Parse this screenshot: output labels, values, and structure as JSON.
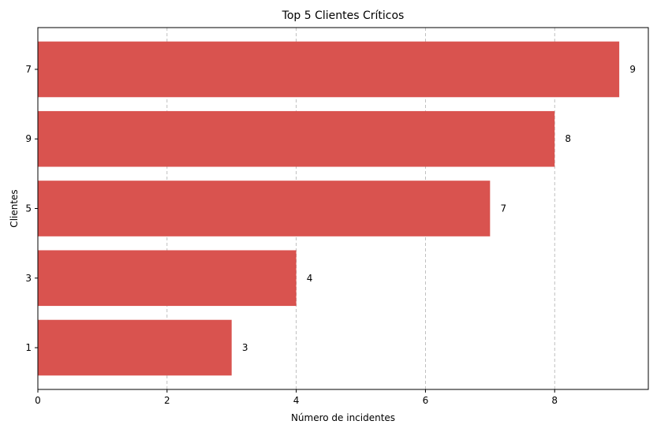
{
  "chart_data": {
    "type": "bar",
    "orientation": "horizontal",
    "title": "Top 5 Clientes Críticos",
    "xlabel": "Número de incidentes",
    "ylabel": "Clientes",
    "categories": [
      "7",
      "9",
      "5",
      "3",
      "1"
    ],
    "values": [
      9,
      8,
      7,
      4,
      3
    ],
    "data_labels": [
      "9",
      "8",
      "7",
      "4",
      "3"
    ],
    "xlim": [
      0,
      9.45
    ],
    "xticks": [
      0,
      2,
      4,
      6,
      8
    ],
    "xtick_labels": [
      "0",
      "2",
      "4",
      "6",
      "8"
    ],
    "grid": "x-axis, dashed",
    "bar_color": "#d9534f"
  }
}
